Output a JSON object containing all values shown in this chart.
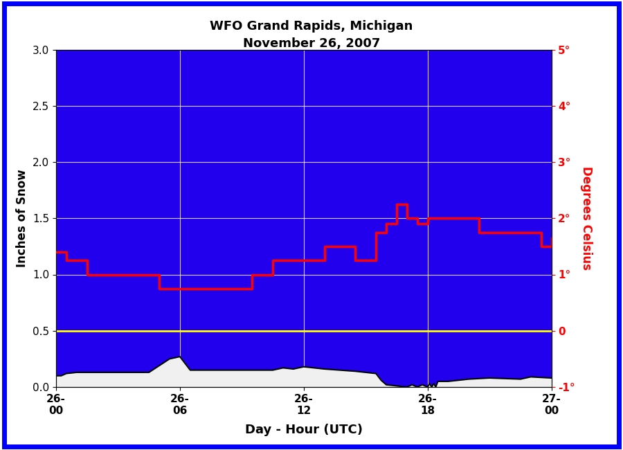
{
  "title_line1": "WFO Grand Rapids, Michigan",
  "title_line2": "November 26, 2007",
  "xlabel": "Day - Hour (UTC)",
  "ylabel_left": "Inches of Snow",
  "ylabel_right": "Degrees Celsius",
  "figure_bg_color": "#FFFFFF",
  "plot_bg_color": "#2200EE",
  "ylim_left": [
    0.0,
    3.0
  ],
  "ylim_right": [
    -1.0,
    5.0
  ],
  "xlim": [
    0,
    24
  ],
  "xticks": [
    0,
    6,
    12,
    18,
    24
  ],
  "xticklabels": [
    "26-\n00",
    "26-\n06",
    "26-\n12",
    "26-\n18",
    "27-\n00"
  ],
  "yticks_left": [
    0.0,
    0.5,
    1.0,
    1.5,
    2.0,
    2.5,
    3.0
  ],
  "yticks_right": [
    -1,
    0,
    1,
    2,
    3,
    4,
    5
  ],
  "ytick_labels_right": [
    "-1°",
    "0",
    "1°",
    "2°",
    "3°",
    "4°",
    "5°"
  ],
  "yellow_line_y": 0.5,
  "snow_x": [
    0,
    0.25,
    0.5,
    1.0,
    4.5,
    5.5,
    6.0,
    6.5,
    10.5,
    11.0,
    11.5,
    12.0,
    12.5,
    13.0,
    14.5,
    15.5,
    15.75,
    16.0,
    17.0,
    17.25,
    17.5,
    17.75,
    18.0,
    18.1,
    18.2,
    18.3,
    18.4,
    18.5,
    19.0,
    20.0,
    21.0,
    22.5,
    23.0,
    24.0
  ],
  "snow_y": [
    0.1,
    0.1,
    0.12,
    0.13,
    0.13,
    0.25,
    0.27,
    0.15,
    0.15,
    0.17,
    0.16,
    0.18,
    0.17,
    0.16,
    0.14,
    0.12,
    0.06,
    0.02,
    0.0,
    0.02,
    0.0,
    0.02,
    0.0,
    0.03,
    0.0,
    0.03,
    0.0,
    0.05,
    0.05,
    0.07,
    0.08,
    0.07,
    0.09,
    0.08
  ],
  "temp_x": [
    0,
    0.5,
    1.5,
    5.0,
    5.5,
    8.5,
    9.5,
    10.5,
    11.5,
    12.5,
    13.0,
    14.5,
    15.5,
    16.0,
    16.5,
    17.0,
    17.5,
    18.0,
    19.5,
    20.5,
    22.5,
    23.5,
    24.0
  ],
  "temp_y": [
    1.4,
    1.25,
    1.0,
    0.75,
    0.75,
    0.75,
    1.0,
    1.25,
    1.25,
    1.25,
    1.5,
    1.25,
    1.75,
    1.9,
    2.25,
    2.0,
    1.9,
    2.0,
    2.0,
    1.75,
    1.75,
    1.5,
    1.65
  ]
}
